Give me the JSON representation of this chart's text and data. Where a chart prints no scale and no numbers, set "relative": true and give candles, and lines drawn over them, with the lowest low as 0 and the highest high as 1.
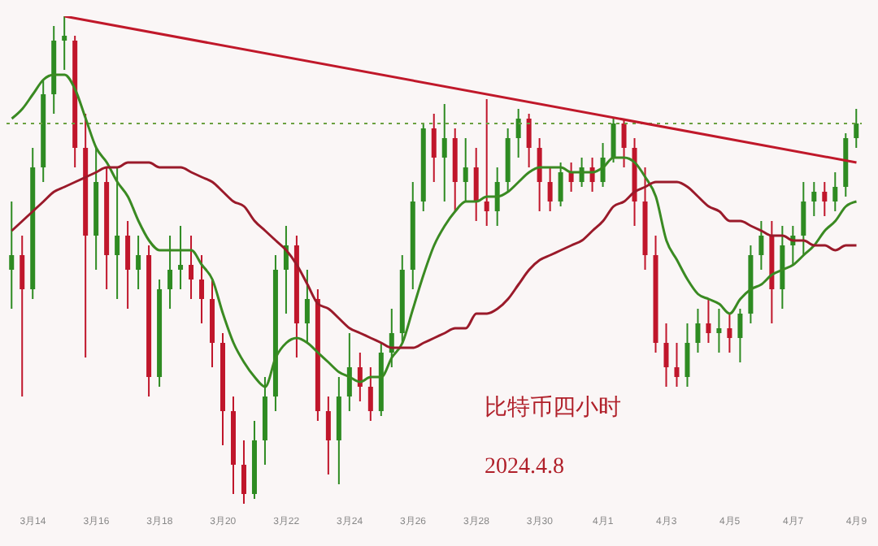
{
  "chart_data": {
    "type": "candlestick",
    "relative": true,
    "categories": [
      null,
      null,
      "3月14",
      null,
      null,
      null,
      null,
      null,
      "3月16",
      null,
      null,
      null,
      null,
      null,
      "3月18",
      null,
      null,
      null,
      null,
      null,
      "3月20",
      null,
      null,
      null,
      null,
      null,
      "3月22",
      null,
      null,
      null,
      null,
      null,
      "3月24",
      null,
      null,
      null,
      null,
      null,
      "3月26",
      null,
      null,
      null,
      null,
      null,
      "3月28",
      null,
      null,
      null,
      null,
      null,
      "3月30",
      null,
      null,
      null,
      null,
      null,
      "4月1",
      null,
      null,
      null,
      null,
      null,
      "4月3",
      null,
      null,
      null,
      null,
      null,
      "4月5",
      null,
      null,
      null,
      null,
      null,
      "4月7",
      null,
      null,
      null,
      null,
      null,
      "4月9"
    ],
    "ohlc": [
      [
        0.48,
        0.62,
        0.4,
        0.51
      ],
      [
        0.51,
        0.55,
        0.22,
        0.44
      ],
      [
        0.44,
        0.73,
        0.42,
        0.69
      ],
      [
        0.69,
        0.87,
        0.66,
        0.84
      ],
      [
        0.84,
        0.98,
        0.8,
        0.95
      ],
      [
        0.95,
        1.0,
        0.89,
        0.96
      ],
      [
        0.95,
        0.96,
        0.69,
        0.73
      ],
      [
        0.73,
        0.8,
        0.3,
        0.55
      ],
      [
        0.55,
        0.73,
        0.48,
        0.66
      ],
      [
        0.66,
        0.69,
        0.44,
        0.51
      ],
      [
        0.51,
        0.69,
        0.42,
        0.55
      ],
      [
        0.55,
        0.58,
        0.4,
        0.48
      ],
      [
        0.48,
        0.55,
        0.44,
        0.51
      ],
      [
        0.51,
        0.53,
        0.22,
        0.26
      ],
      [
        0.26,
        0.46,
        0.24,
        0.44
      ],
      [
        0.44,
        0.55,
        0.4,
        0.48
      ],
      [
        0.48,
        0.57,
        0.44,
        0.49
      ],
      [
        0.49,
        0.55,
        0.42,
        0.46
      ],
      [
        0.46,
        0.51,
        0.37,
        0.42
      ],
      [
        0.42,
        0.46,
        0.28,
        0.33
      ],
      [
        0.33,
        0.35,
        0.12,
        0.19
      ],
      [
        0.19,
        0.22,
        0.02,
        0.08
      ],
      [
        0.08,
        0.13,
        0.0,
        0.02
      ],
      [
        0.02,
        0.17,
        0.01,
        0.13
      ],
      [
        0.13,
        0.26,
        0.08,
        0.22
      ],
      [
        0.22,
        0.51,
        0.19,
        0.48
      ],
      [
        0.48,
        0.57,
        0.39,
        0.53
      ],
      [
        0.53,
        0.55,
        0.3,
        0.37
      ],
      [
        0.37,
        0.48,
        0.33,
        0.42
      ],
      [
        0.42,
        0.44,
        0.17,
        0.19
      ],
      [
        0.19,
        0.22,
        0.06,
        0.13
      ],
      [
        0.13,
        0.26,
        0.04,
        0.22
      ],
      [
        0.22,
        0.35,
        0.19,
        0.28
      ],
      [
        0.28,
        0.31,
        0.21,
        0.24
      ],
      [
        0.24,
        0.28,
        0.17,
        0.19
      ],
      [
        0.19,
        0.33,
        0.18,
        0.31
      ],
      [
        0.31,
        0.4,
        0.28,
        0.35
      ],
      [
        0.35,
        0.51,
        0.33,
        0.48
      ],
      [
        0.48,
        0.66,
        0.44,
        0.62
      ],
      [
        0.62,
        0.78,
        0.6,
        0.77
      ],
      [
        0.77,
        0.8,
        0.66,
        0.71
      ],
      [
        0.71,
        0.82,
        0.62,
        0.75
      ],
      [
        0.75,
        0.77,
        0.6,
        0.66
      ],
      [
        0.66,
        0.75,
        0.62,
        0.69
      ],
      [
        0.69,
        0.73,
        0.58,
        0.62
      ],
      [
        0.62,
        0.83,
        0.57,
        0.6
      ],
      [
        0.6,
        0.69,
        0.57,
        0.66
      ],
      [
        0.66,
        0.77,
        0.64,
        0.75
      ],
      [
        0.75,
        0.81,
        0.71,
        0.79
      ],
      [
        0.79,
        0.8,
        0.69,
        0.73
      ],
      [
        0.73,
        0.75,
        0.6,
        0.66
      ],
      [
        0.66,
        0.69,
        0.6,
        0.62
      ],
      [
        0.62,
        0.7,
        0.61,
        0.68
      ],
      [
        0.68,
        0.7,
        0.64,
        0.66
      ],
      [
        0.66,
        0.71,
        0.65,
        0.69
      ],
      [
        0.69,
        0.71,
        0.64,
        0.66
      ],
      [
        0.66,
        0.74,
        0.65,
        0.71
      ],
      [
        0.71,
        0.79,
        0.7,
        0.78
      ],
      [
        0.78,
        0.79,
        0.69,
        0.73
      ],
      [
        0.73,
        0.75,
        0.57,
        0.62
      ],
      [
        0.62,
        0.69,
        0.48,
        0.51
      ],
      [
        0.51,
        0.55,
        0.31,
        0.33
      ],
      [
        0.33,
        0.37,
        0.24,
        0.28
      ],
      [
        0.28,
        0.33,
        0.24,
        0.26
      ],
      [
        0.26,
        0.37,
        0.24,
        0.33
      ],
      [
        0.33,
        0.4,
        0.31,
        0.37
      ],
      [
        0.37,
        0.42,
        0.33,
        0.35
      ],
      [
        0.35,
        0.4,
        0.31,
        0.36
      ],
      [
        0.36,
        0.39,
        0.31,
        0.34
      ],
      [
        0.34,
        0.4,
        0.29,
        0.39
      ],
      [
        0.39,
        0.53,
        0.37,
        0.51
      ],
      [
        0.51,
        0.58,
        0.48,
        0.55
      ],
      [
        0.55,
        0.58,
        0.37,
        0.44
      ],
      [
        0.44,
        0.57,
        0.4,
        0.53
      ],
      [
        0.53,
        0.57,
        0.49,
        0.55
      ],
      [
        0.55,
        0.66,
        0.51,
        0.62
      ],
      [
        0.62,
        0.66,
        0.59,
        0.64
      ],
      [
        0.64,
        0.66,
        0.59,
        0.62
      ],
      [
        0.62,
        0.68,
        0.6,
        0.65
      ],
      [
        0.65,
        0.76,
        0.63,
        0.75
      ],
      [
        0.75,
        0.81,
        0.73,
        0.78
      ]
    ],
    "colors": [
      "#2e8b22",
      "#c0162b",
      "#2e8b22",
      "#2e8b22",
      "#2e8b22",
      "#2e8b22",
      "#c0162b",
      "#c0162b",
      "#2e8b22",
      "#c0162b",
      "#2e8b22",
      "#c0162b",
      "#2e8b22",
      "#c0162b",
      "#2e8b22",
      "#2e8b22",
      "#2e8b22",
      "#c0162b",
      "#c0162b",
      "#c0162b",
      "#c0162b",
      "#c0162b",
      "#c0162b",
      "#2e8b22",
      "#2e8b22",
      "#2e8b22",
      "#2e8b22",
      "#c0162b",
      "#2e8b22",
      "#c0162b",
      "#c0162b",
      "#2e8b22",
      "#2e8b22",
      "#c0162b",
      "#c0162b",
      "#2e8b22",
      "#2e8b22",
      "#2e8b22",
      "#2e8b22",
      "#2e8b22",
      "#c0162b",
      "#2e8b22",
      "#c0162b",
      "#2e8b22",
      "#c0162b",
      "#c0162b",
      "#2e8b22",
      "#2e8b22",
      "#2e8b22",
      "#c0162b",
      "#c0162b",
      "#c0162b",
      "#2e8b22",
      "#c0162b",
      "#2e8b22",
      "#c0162b",
      "#2e8b22",
      "#2e8b22",
      "#c0162b",
      "#c0162b",
      "#c0162b",
      "#c0162b",
      "#c0162b",
      "#c0162b",
      "#2e8b22",
      "#2e8b22",
      "#c0162b",
      "#2e8b22",
      "#c0162b",
      "#2e8b22",
      "#2e8b22",
      "#2e8b22",
      "#c0162b",
      "#2e8b22",
      "#2e8b22",
      "#2e8b22",
      "#2e8b22",
      "#c0162b",
      "#2e8b22",
      "#2e8b22",
      "#2e8b22"
    ],
    "series": [
      {
        "type": "line",
        "color": "#3a8a22",
        "values": [
          0.79,
          0.81,
          0.84,
          0.87,
          0.88,
          0.88,
          0.85,
          0.79,
          0.73,
          0.7,
          0.66,
          0.63,
          0.58,
          0.54,
          0.52,
          0.52,
          0.52,
          0.52,
          0.49,
          0.46,
          0.39,
          0.33,
          0.29,
          0.26,
          0.24,
          0.3,
          0.33,
          0.34,
          0.33,
          0.31,
          0.29,
          0.27,
          0.26,
          0.25,
          0.26,
          0.26,
          0.3,
          0.33,
          0.4,
          0.47,
          0.53,
          0.57,
          0.6,
          0.62,
          0.62,
          0.63,
          0.63,
          0.64,
          0.66,
          0.68,
          0.69,
          0.69,
          0.69,
          0.68,
          0.68,
          0.68,
          0.69,
          0.71,
          0.71,
          0.7,
          0.67,
          0.63,
          0.54,
          0.5,
          0.46,
          0.43,
          0.42,
          0.41,
          0.39,
          0.42,
          0.44,
          0.45,
          0.47,
          0.48,
          0.49,
          0.51,
          0.53,
          0.56,
          0.58,
          0.61,
          0.62
        ]
      },
      {
        "type": "line",
        "color": "#9a1a2a",
        "values": [
          0.56,
          0.58,
          0.6,
          0.62,
          0.64,
          0.65,
          0.66,
          0.67,
          0.68,
          0.69,
          0.69,
          0.7,
          0.7,
          0.7,
          0.69,
          0.69,
          0.69,
          0.68,
          0.67,
          0.66,
          0.64,
          0.62,
          0.61,
          0.58,
          0.56,
          0.54,
          0.52,
          0.49,
          0.45,
          0.41,
          0.4,
          0.38,
          0.36,
          0.35,
          0.34,
          0.33,
          0.32,
          0.32,
          0.32,
          0.33,
          0.34,
          0.35,
          0.36,
          0.36,
          0.39,
          0.39,
          0.4,
          0.42,
          0.45,
          0.48,
          0.5,
          0.51,
          0.52,
          0.53,
          0.54,
          0.56,
          0.58,
          0.61,
          0.62,
          0.64,
          0.65,
          0.66,
          0.66,
          0.66,
          0.65,
          0.63,
          0.61,
          0.6,
          0.58,
          0.58,
          0.57,
          0.56,
          0.55,
          0.55,
          0.54,
          0.54,
          0.53,
          0.53,
          0.52,
          0.53,
          0.53
        ]
      },
      {
        "type": "line",
        "color": "#c0182a",
        "values": [
          null,
          null,
          null,
          null,
          null,
          1.0,
          null,
          null,
          null,
          null,
          null,
          null,
          null,
          null,
          null,
          null,
          null,
          null,
          null,
          null,
          null,
          null,
          null,
          null,
          null,
          null,
          null,
          null,
          null,
          null,
          null,
          null,
          null,
          null,
          null,
          null,
          null,
          null,
          null,
          null,
          null,
          null,
          null,
          null,
          null,
          null,
          null,
          null,
          null,
          null,
          null,
          null,
          null,
          null,
          null,
          null,
          null,
          null,
          null,
          null,
          null,
          null,
          null,
          null,
          null,
          null,
          null,
          null,
          null,
          null,
          null,
          null,
          null,
          null,
          null,
          null,
          null,
          null,
          null,
          null,
          0.7
        ]
      }
    ],
    "ref_lines": [
      {
        "axis": "y",
        "value": 0.78,
        "color": "#6aa040",
        "line_style": "dotted"
      }
    ],
    "annotations": [
      "比特币四小时",
      "2024.4.8"
    ]
  }
}
